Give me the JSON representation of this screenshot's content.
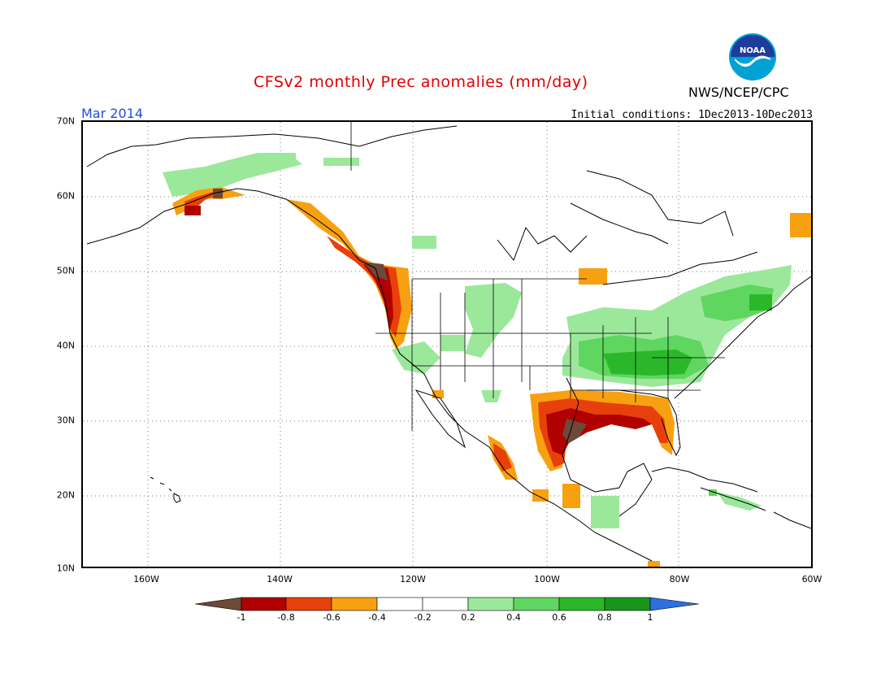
{
  "header": {
    "title": "CFSv2 monthly Prec anomalies (mm/day)",
    "organization": "NWS/NCEP/CPC",
    "logo_text": "NOAA",
    "period": "Mar 2014",
    "initial_conditions": "Initial conditions: 1Dec2013-10Dec2013"
  },
  "map": {
    "lon_range": [
      "170W",
      "60W"
    ],
    "lat_range": [
      "10N",
      "70N"
    ],
    "lat_labels": [
      "70N",
      "60N",
      "50N",
      "40N",
      "30N",
      "20N",
      "10N"
    ],
    "lon_labels": [
      "160W",
      "140W",
      "120W",
      "100W",
      "80W",
      "60W"
    ],
    "gridlines": "dotted"
  },
  "colorbar": {
    "labels": [
      "-1",
      "-0.8",
      "-0.6",
      "-0.4",
      "-0.2",
      "0.2",
      "0.4",
      "0.6",
      "0.8",
      "1"
    ],
    "colors": [
      "#6b4a3a",
      "#b00000",
      "#e8400a",
      "#f7a010",
      "#ffffff",
      "#9be89b",
      "#5fd65f",
      "#2ab82a",
      "#199619",
      "#2c6fe0"
    ]
  },
  "anomaly_regions": {
    "dry": [
      "Pacific Northwest coast",
      "Gulf Coast",
      "Florida",
      "Western Mexico",
      "South Alaska"
    ],
    "wet": [
      "Ohio Valley",
      "Northeast US",
      "Central Plains",
      "Cuba & Hispaniola",
      "Central America",
      "Northern Alaska"
    ]
  }
}
